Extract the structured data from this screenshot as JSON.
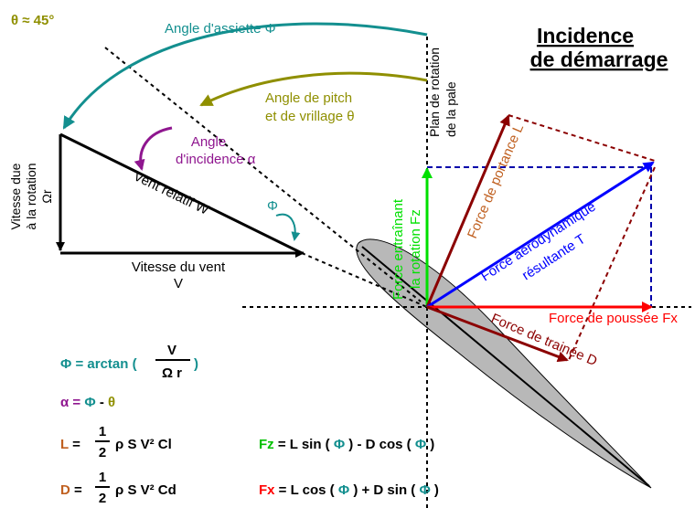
{
  "colors": {
    "teal": "#138f8f",
    "olive": "#8f8f00",
    "purple": "#8f168f",
    "green": "#00e000",
    "blue": "#0000ff",
    "red": "#ff0000",
    "darkred": "#8b0000",
    "brown": "#c06020",
    "black": "#000000",
    "airfoil": "#b8b8b8"
  },
  "header": {
    "theta_note": "θ ≈ 45°",
    "title_line1": "Incidence",
    "title_line2": "de démarrage"
  },
  "labels": {
    "assiette": "Angle d'assiette Φ",
    "pitch_line1": "Angle de pitch",
    "pitch_line2": "et de vrillage θ",
    "incidence_line1": "Angle",
    "incidence_line2": "d'incidence α",
    "rotation_speed_line1": "Vitesse due",
    "rotation_speed_line2": "à la rotation",
    "rotation_speed_line3": "Ωr",
    "relative_wind": "Vent relatif W",
    "phi_small": "Φ",
    "wind_speed_line1": "Vitesse du vent",
    "wind_speed_line2": "V",
    "plane_line1": "Plan de rotation",
    "plane_line2": "de la pale",
    "lift": "Force de portance L",
    "fz_line1": "Force entraînant",
    "fz_line2": "la rotation Fz",
    "aero_line1": "Force aérodynamique",
    "aero_line2": "résultante T",
    "thrust": "Force de poussée Fx",
    "drag": "Force de trainée D"
  },
  "formulas": {
    "phi_prefix": "Φ = arctan (",
    "phi_num": "V",
    "phi_den": "Ω r",
    "phi_suffix": ")",
    "alpha_a": "α",
    "alpha_eq": " = ",
    "alpha_phi": "Φ",
    "alpha_minus": " -  ",
    "alpha_theta": "θ",
    "L_var": "L",
    "D_var": "D",
    "eq": " = ",
    "half_num": "1",
    "half_den": "2",
    "L_rest": "ρ S V² Cl",
    "D_rest": "ρ S V² Cd",
    "Fz_var": "Fz",
    "Fz_part1": " = L sin ( ",
    "Fz_phi1": "Φ",
    "Fz_part2": " ) - D cos ( ",
    "Fz_phi2": "Φ",
    "Fz_part3": " )",
    "Fx_var": "Fx",
    "Fx_part1": " = L cos ( ",
    "Fx_phi1": "Φ",
    "Fx_part2": " ) + D sin ( ",
    "Fx_phi2": "Φ",
    "Fx_part3": " )"
  }
}
